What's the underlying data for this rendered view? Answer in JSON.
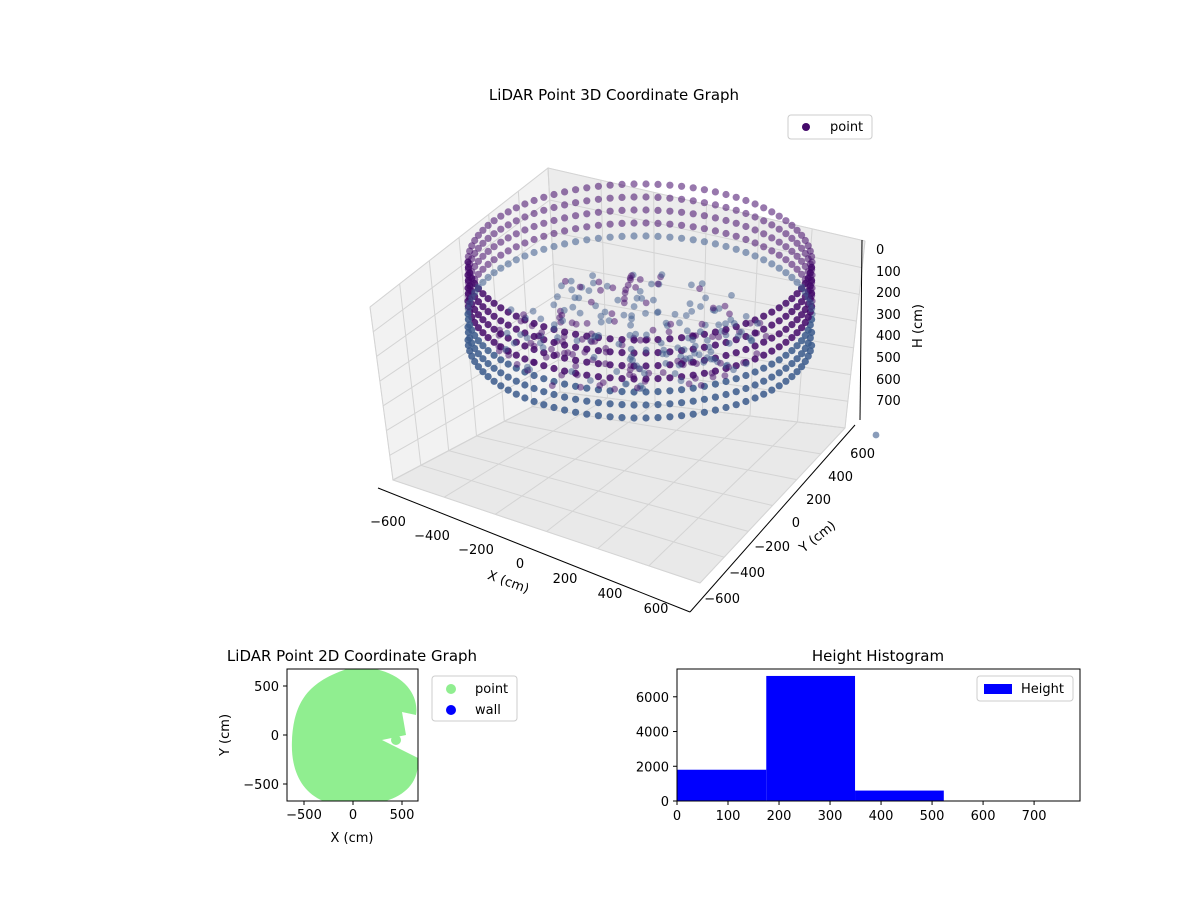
{
  "colors": {
    "point3d_dark": "#440a6a",
    "point3d_light": "#3b5a8c",
    "point2d": "#90ee90",
    "wall2d": "#0000ff",
    "histogram": "#0000ff",
    "pane": "#f2f2f2",
    "grid": "#d4d4d4"
  },
  "chart_data": [
    {
      "type": "scatter",
      "projection": "3d",
      "title": "LiDAR Point 3D Coordinate Graph",
      "xlabel": "X (cm)",
      "ylabel": "Y (cm)",
      "zlabel": "H (cm)",
      "xticks": [
        "−600",
        "−400",
        "−200",
        "0",
        "200",
        "400",
        "600"
      ],
      "yticks": [
        "−600",
        "−400",
        "−200",
        "0",
        "200",
        "400",
        "600"
      ],
      "zticks": [
        "0",
        "100",
        "200",
        "300",
        "400",
        "500",
        "600",
        "700"
      ],
      "xlim": [
        -700,
        700
      ],
      "ylim": [
        -700,
        700
      ],
      "zlim": [
        750,
        0
      ],
      "legend": [
        "point"
      ],
      "legend_position": "top-right",
      "grid": true,
      "ring": {
        "radius_cm": 560,
        "height_min_cm": 100,
        "height_max_cm": 450
      },
      "series": [
        {
          "name": "point",
          "note_values": "sample of ring wall and interior points",
          "points": [
            [
              560,
              0,
              120
            ],
            [
              560,
              0,
              200
            ],
            [
              560,
              0,
              300
            ],
            [
              560,
              0,
              400
            ],
            [
              0,
              560,
              150
            ],
            [
              0,
              560,
              300
            ],
            [
              0,
              560,
              430
            ],
            [
              -560,
              0,
              150
            ],
            [
              -560,
              0,
              300
            ],
            [
              -560,
              0,
              430
            ],
            [
              0,
              -560,
              150
            ],
            [
              0,
              -560,
              300
            ],
            [
              0,
              -560,
              430
            ],
            [
              100,
              50,
              250
            ],
            [
              -150,
              100,
              280
            ],
            [
              200,
              -100,
              230
            ],
            [
              300,
              200,
              220
            ],
            [
              -50,
              -200,
              260
            ],
            [
              150,
              300,
              200
            ],
            [
              -250,
              -50,
              300
            ]
          ]
        }
      ]
    },
    {
      "type": "scatter",
      "title": "LiDAR Point 2D Coordinate Graph",
      "xlabel": "X (cm)",
      "ylabel": "Y (cm)",
      "xticks": [
        "−500",
        "0",
        "500"
      ],
      "yticks": [
        "500",
        "0",
        "−500"
      ],
      "xlim": [
        -680,
        660
      ],
      "ylim": [
        -680,
        680
      ],
      "legend": [
        "point",
        "wall"
      ],
      "legend_position": "right",
      "series": [
        {
          "name": "point",
          "shape": "filled disc radius ~600 cm"
        },
        {
          "name": "wall"
        }
      ]
    },
    {
      "type": "bar",
      "title": "Height Histogram",
      "legend": [
        "Height"
      ],
      "legend_position": "top-right",
      "xticks": [
        "0",
        "100",
        "200",
        "300",
        "400",
        "500",
        "600",
        "700"
      ],
      "yticks": [
        "0",
        "2000",
        "4000",
        "6000"
      ],
      "xlim": [
        0,
        790
      ],
      "ylim": [
        0,
        7600
      ],
      "bins": [
        {
          "from": 0,
          "to": 175,
          "value": 1800
        },
        {
          "from": 175,
          "to": 349,
          "value": 7200
        },
        {
          "from": 349,
          "to": 523,
          "value": 600
        },
        {
          "from": 523,
          "to": 697,
          "value": 20
        }
      ]
    }
  ]
}
